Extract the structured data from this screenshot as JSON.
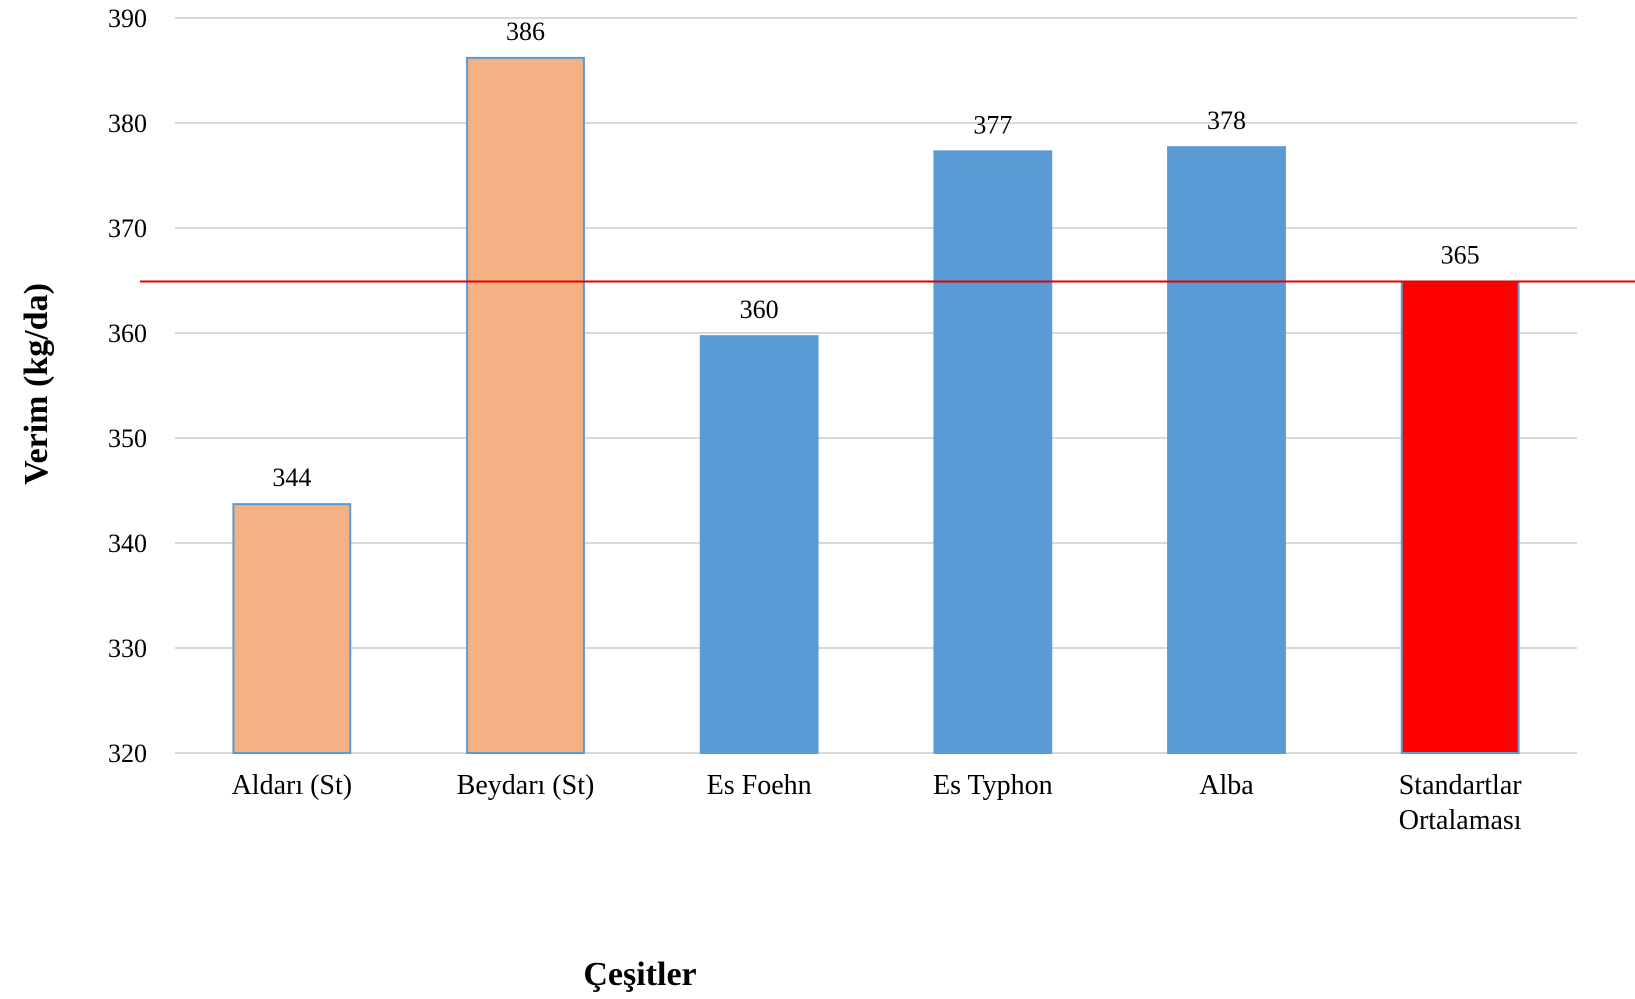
{
  "chart_data": {
    "type": "bar",
    "categories": [
      "Aldarı (St)",
      "Beydarı (St)",
      "Es Foehn",
      "Es Typhon",
      "Alba",
      "Standartlar Ortalaması"
    ],
    "values": [
      343.7,
      386.2,
      359.7,
      377.3,
      377.7,
      364.9
    ],
    "data_labels": [
      "344",
      "386",
      "360",
      "377",
      "378",
      "365"
    ],
    "bar_colors": [
      "#F4B183",
      "#F4B183",
      "#5B9BD5",
      "#5B9BD5",
      "#5B9BD5",
      "#FF0000"
    ],
    "bar_border_color": "#5B9BD5",
    "reference_line": {
      "value": 364.9,
      "color": "#E00000"
    },
    "xlabel": "Çeşitler",
    "ylabel": "Verim (kg/da)",
    "ylim": [
      320,
      390
    ],
    "yticks": [
      320,
      330,
      340,
      350,
      360,
      370,
      380,
      390
    ],
    "grid": true,
    "legend": "none"
  }
}
